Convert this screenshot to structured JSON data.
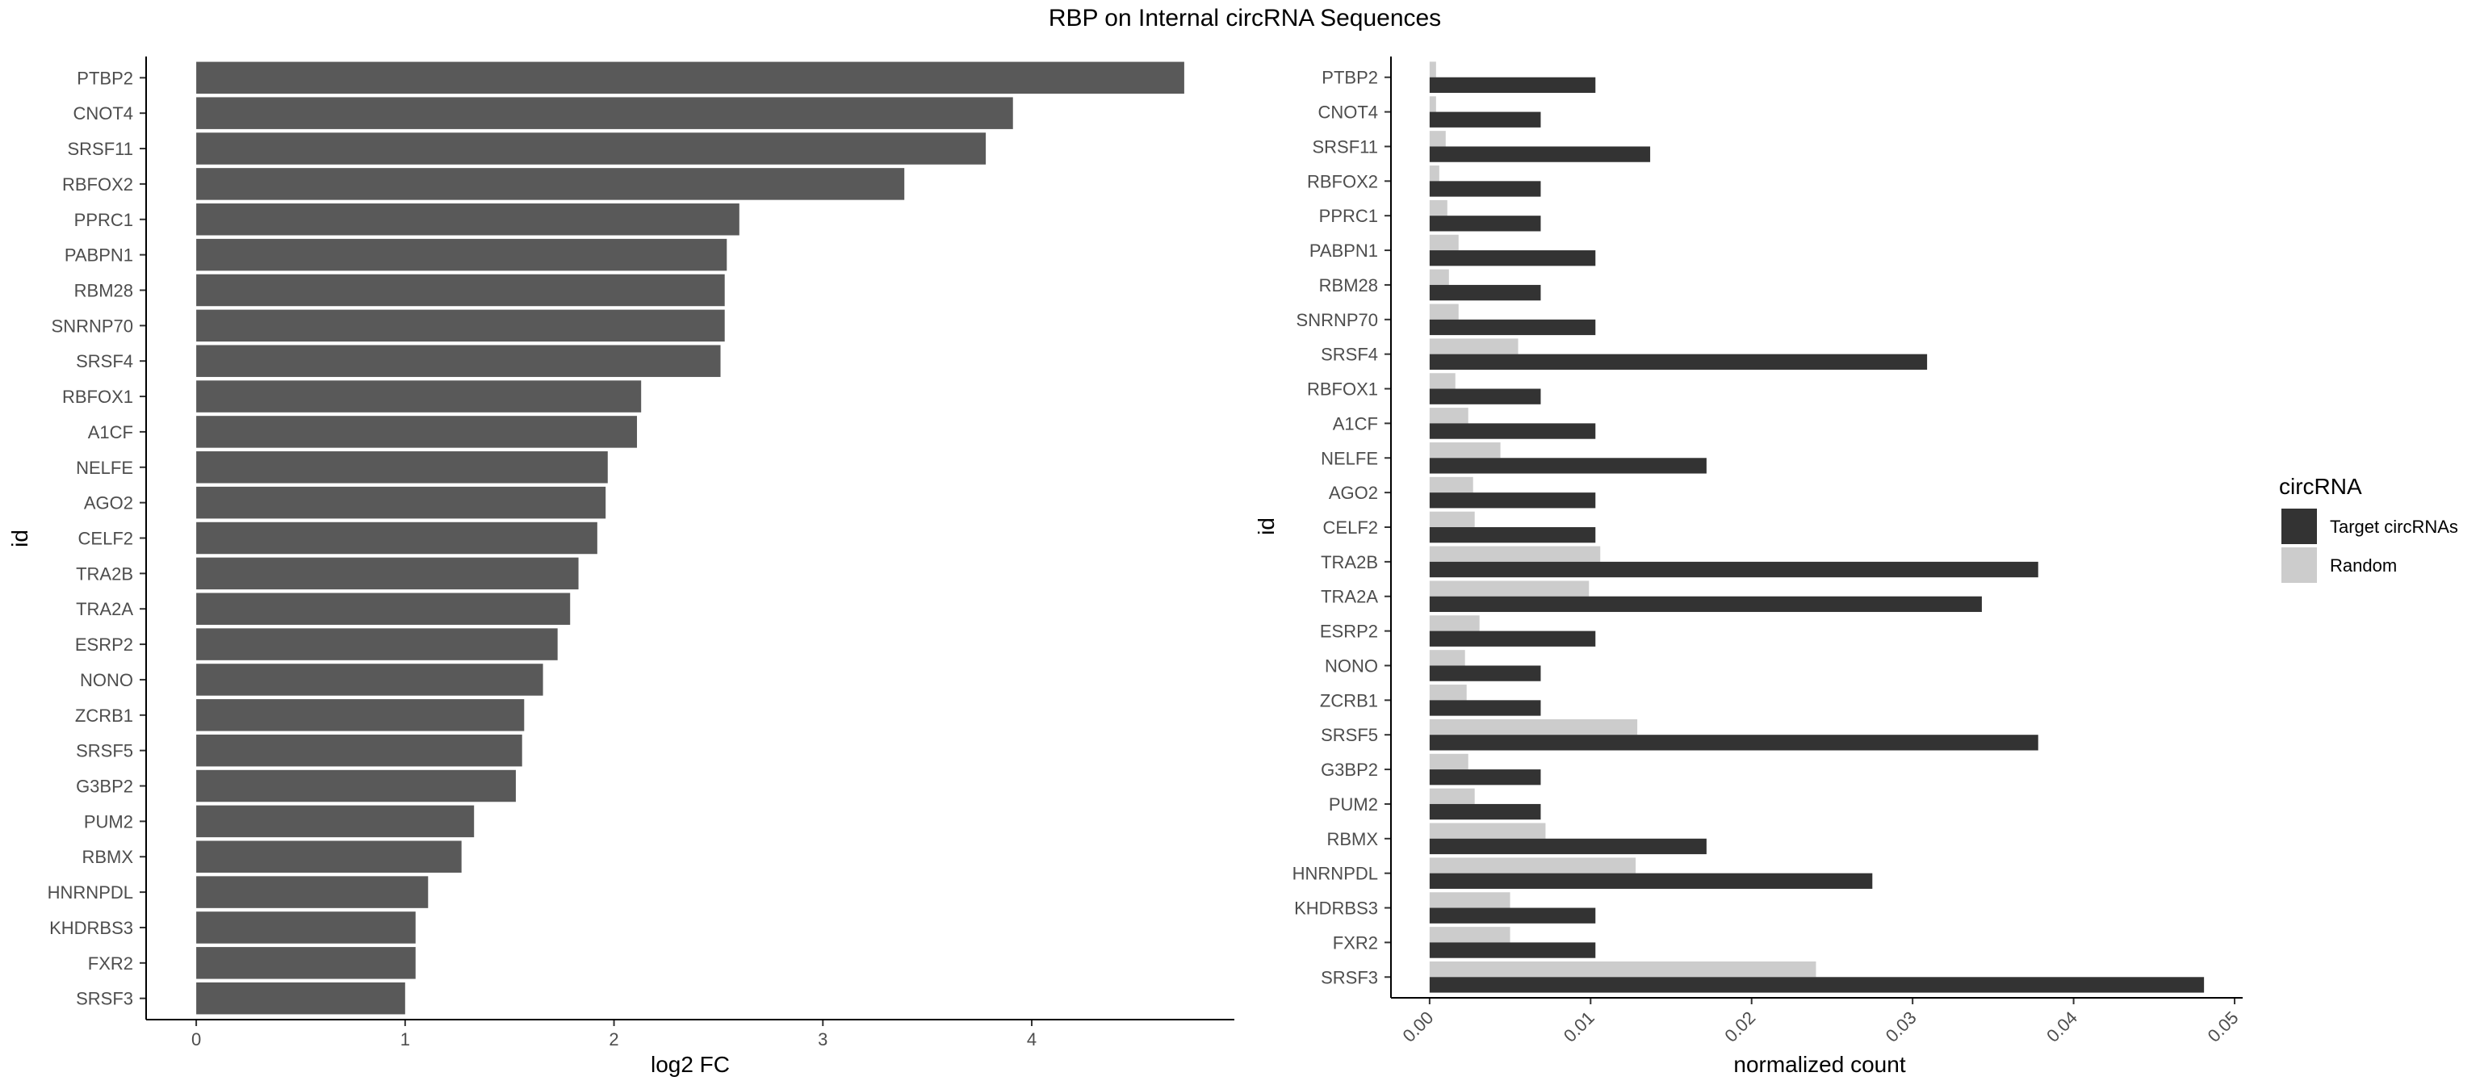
{
  "title": "RBP on Internal circRNA Sequences",
  "chart_data": [
    {
      "type": "bar",
      "orientation": "horizontal",
      "categories": [
        "PTBP2",
        "CNOT4",
        "SRSF11",
        "RBFOX2",
        "PPRC1",
        "PABPN1",
        "RBM28",
        "SNRNP70",
        "SRSF4",
        "RBFOX1",
        "A1CF",
        "NELFE",
        "AGO2",
        "CELF2",
        "TRA2B",
        "TRA2A",
        "ESRP2",
        "NONO",
        "ZCRB1",
        "SRSF5",
        "G3BP2",
        "PUM2",
        "RBMX",
        "HNRNPDL",
        "KHDRBS3",
        "FXR2",
        "SRSF3"
      ],
      "values": [
        4.73,
        3.91,
        3.78,
        3.39,
        2.6,
        2.54,
        2.53,
        2.53,
        2.51,
        2.13,
        2.11,
        1.97,
        1.96,
        1.92,
        1.83,
        1.79,
        1.73,
        1.66,
        1.57,
        1.56,
        1.53,
        1.33,
        1.27,
        1.11,
        1.05,
        1.05,
        1.0
      ],
      "xlabel": "log2 FC",
      "ylabel": "id",
      "xlim": [
        -0.24,
        4.97
      ],
      "xticks": [
        0,
        1,
        2,
        3,
        4
      ],
      "bar_color": "#595959",
      "grid": false
    },
    {
      "type": "bar",
      "orientation": "horizontal",
      "categories": [
        "PTBP2",
        "CNOT4",
        "SRSF11",
        "RBFOX2",
        "PPRC1",
        "PABPN1",
        "RBM28",
        "SNRNP70",
        "SRSF4",
        "RBFOX1",
        "A1CF",
        "NELFE",
        "AGO2",
        "CELF2",
        "TRA2B",
        "TRA2A",
        "ESRP2",
        "NONO",
        "ZCRB1",
        "SRSF5",
        "G3BP2",
        "PUM2",
        "RBMX",
        "HNRNPDL",
        "KHDRBS3",
        "FXR2",
        "SRSF3"
      ],
      "series": [
        {
          "name": "Target circRNAs",
          "color": "#333333",
          "values": [
            0.0103,
            0.0069,
            0.0137,
            0.0069,
            0.0069,
            0.0103,
            0.0069,
            0.0103,
            0.0309,
            0.0069,
            0.0103,
            0.0172,
            0.0103,
            0.0103,
            0.0378,
            0.0343,
            0.0103,
            0.0069,
            0.0069,
            0.0378,
            0.0069,
            0.0069,
            0.0172,
            0.0275,
            0.0103,
            0.0103,
            0.0481
          ]
        },
        {
          "name": "Random",
          "color": "#cccccc",
          "values": [
            0.0004,
            0.0004,
            0.001,
            0.0006,
            0.0011,
            0.0018,
            0.0012,
            0.0018,
            0.0055,
            0.0016,
            0.0024,
            0.0044,
            0.0027,
            0.0028,
            0.0106,
            0.0099,
            0.0031,
            0.0022,
            0.0023,
            0.0129,
            0.0024,
            0.0028,
            0.0072,
            0.0128,
            0.005,
            0.005,
            0.024
          ]
        }
      ],
      "xlabel": "normalized count",
      "ylabel": "id",
      "xlim": [
        -0.0024,
        0.0505
      ],
      "xticks": [
        0.0,
        0.01,
        0.02,
        0.03,
        0.04,
        0.05
      ],
      "xtick_labels": [
        "0.00",
        "0.01",
        "0.02",
        "0.03",
        "0.04",
        "0.05"
      ],
      "legend_title": "circRNA",
      "legend_position": "right",
      "grid": false
    }
  ]
}
